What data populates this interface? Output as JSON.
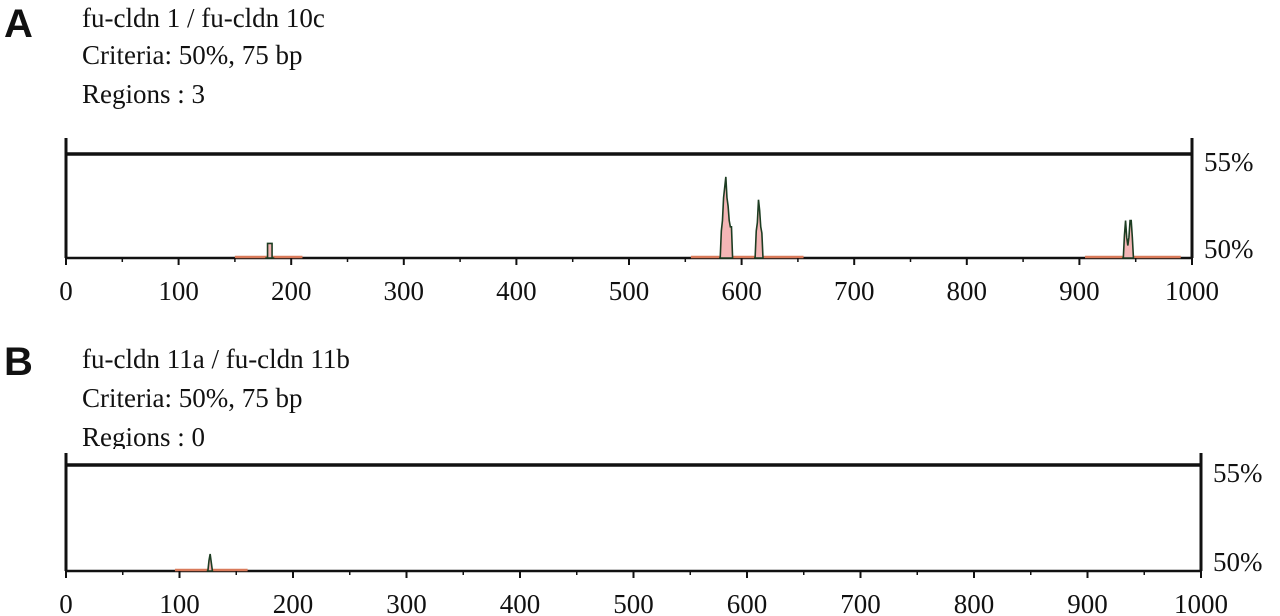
{
  "panels": [
    {
      "letter": "A",
      "title": "fu-cldn 1 / fu-cldn 10c",
      "criteria": "Criteria: 50%, 75 bp",
      "regions": "Regions : 3"
    },
    {
      "letter": "B",
      "title": "fu-cldn 11a / fu-cldn 11b",
      "criteria": "Criteria: 50%, 75 bp",
      "regions": "Regions : 0"
    }
  ],
  "chart_data": [
    {
      "type": "area",
      "title": "fu-cldn 1 / fu-cldn 10c",
      "xlim": [
        0,
        1000
      ],
      "ylim": [
        50,
        55
      ],
      "x_ticks": [
        0,
        100,
        200,
        300,
        400,
        500,
        600,
        700,
        800,
        900,
        1000
      ],
      "y_labels": [
        "55%",
        "50%"
      ],
      "threshold": 55,
      "regions_count": 3,
      "colors": {
        "fill": "#f4b6b6",
        "baseline": "#d97a5a",
        "outline": "#1d3d22",
        "frame": "#111111"
      },
      "baseline_segments": [
        [
          150,
          210
        ],
        [
          555,
          655
        ],
        [
          905,
          990
        ]
      ],
      "peaks": [
        {
          "x": [
            177,
            179,
            179,
            183,
            183,
            185
          ],
          "y": [
            50,
            50,
            50.7,
            50.7,
            50,
            50
          ]
        },
        {
          "x": [
            580,
            581,
            582,
            583,
            584,
            586,
            587,
            588,
            589,
            590,
            591,
            592
          ],
          "y": [
            50,
            50,
            51.3,
            51.8,
            52.9,
            53.9,
            52.9,
            52.5,
            51.8,
            51.5,
            51.5,
            50
          ]
        },
        {
          "x": [
            611,
            612,
            613,
            614,
            615,
            616,
            617,
            618,
            619
          ],
          "y": [
            50,
            50,
            51.3,
            51.7,
            52.8,
            52.3,
            51.5,
            51.2,
            50
          ]
        },
        {
          "x": [
            938,
            939,
            940,
            941,
            942,
            943,
            944,
            945,
            946,
            947,
            948
          ],
          "y": [
            50,
            50,
            51.1,
            51.8,
            51.0,
            50.6,
            51.0,
            51.8,
            51.8,
            51.0,
            50
          ]
        }
      ]
    },
    {
      "type": "area",
      "title": "fu-cldn 11a / fu-cldn 11b",
      "xlim": [
        0,
        1000
      ],
      "ylim": [
        50,
        55
      ],
      "x_ticks": [
        0,
        100,
        200,
        300,
        400,
        500,
        600,
        700,
        800,
        900,
        1000
      ],
      "y_labels": [
        "55%",
        "50%"
      ],
      "threshold": 55,
      "regions_count": 0,
      "colors": {
        "fill": "#f4b6b6",
        "baseline": "#d97a5a",
        "outline": "#1d3d22",
        "frame": "#111111"
      },
      "baseline_segments": [
        [
          96,
          160
        ]
      ],
      "peaks": [
        {
          "x": [
            124,
            125,
            126,
            127,
            128,
            129
          ],
          "y": [
            50,
            50,
            50.5,
            50.8,
            50.4,
            50
          ]
        }
      ]
    }
  ]
}
